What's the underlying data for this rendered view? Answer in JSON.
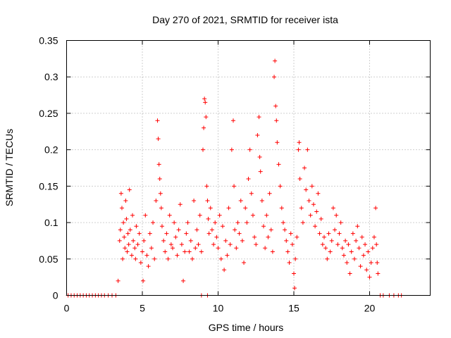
{
  "chart_data": {
    "type": "scatter",
    "title": "Day 270 of 2021, SRMTID for receiver ista",
    "xlabel": "GPS time / hours",
    "ylabel": "SRMTID / TECUs",
    "xlim": [
      0,
      24
    ],
    "ylim": [
      0,
      0.35
    ],
    "xticks": [
      0,
      5,
      10,
      15,
      20
    ],
    "yticks": [
      0,
      0.05,
      0.1,
      0.15,
      0.2,
      0.25,
      0.3,
      0.35
    ],
    "ytick_labels": [
      "0",
      "0.05",
      "0.1",
      "0.15",
      "0.2",
      "0.25",
      "0.3",
      "0.35"
    ],
    "xtick_labels": [
      "0",
      "5",
      "10",
      "15",
      "20"
    ],
    "grid": true,
    "marker": "+",
    "color": "#ff0000",
    "series": [
      {
        "points": [
          [
            0.1,
            0
          ],
          [
            0.3,
            0
          ],
          [
            0.5,
            0
          ],
          [
            0.7,
            0
          ],
          [
            0.9,
            0
          ],
          [
            1.1,
            0
          ],
          [
            1.3,
            0
          ],
          [
            1.5,
            0
          ],
          [
            1.7,
            0
          ],
          [
            1.9,
            0
          ],
          [
            2.1,
            0
          ],
          [
            2.3,
            0
          ],
          [
            2.5,
            0
          ],
          [
            2.75,
            0
          ],
          [
            3.0,
            0
          ],
          [
            3.25,
            0
          ],
          [
            8.9,
            0
          ],
          [
            9.3,
            0
          ],
          [
            20.7,
            0
          ],
          [
            20.9,
            0
          ],
          [
            21.3,
            0
          ],
          [
            21.6,
            0
          ],
          [
            21.9,
            0
          ],
          [
            22.1,
            0
          ],
          [
            3.4,
            0.02
          ],
          [
            3.5,
            0.075
          ],
          [
            3.55,
            0.09
          ],
          [
            3.6,
            0.14
          ],
          [
            3.65,
            0.12
          ],
          [
            3.7,
            0.05
          ],
          [
            3.75,
            0.1
          ],
          [
            3.8,
            0.08
          ],
          [
            3.85,
            0.065
          ],
          [
            3.9,
            0.13
          ],
          [
            3.95,
            0.105
          ],
          [
            4.0,
            0.06
          ],
          [
            4.05,
            0.085
          ],
          [
            4.1,
            0.07
          ],
          [
            4.15,
            0.145
          ],
          [
            4.2,
            0.09
          ],
          [
            4.3,
            0.055
          ],
          [
            4.35,
            0.11
          ],
          [
            4.4,
            0.075
          ],
          [
            4.5,
            0.065
          ],
          [
            4.55,
            0.05
          ],
          [
            4.6,
            0.095
          ],
          [
            4.7,
            0.07
          ],
          [
            4.8,
            0.085
          ],
          [
            4.9,
            0.045
          ],
          [
            5.0,
            0.06
          ],
          [
            5.05,
            0.02
          ],
          [
            5.1,
            0.075
          ],
          [
            5.2,
            0.11
          ],
          [
            5.3,
            0.055
          ],
          [
            5.4,
            0.04
          ],
          [
            5.5,
            0.085
          ],
          [
            5.6,
            0.065
          ],
          [
            5.7,
            0.1
          ],
          [
            5.8,
            0.05
          ],
          [
            5.9,
            0.13
          ],
          [
            6.0,
            0.24
          ],
          [
            6.05,
            0.215
          ],
          [
            6.1,
            0.18
          ],
          [
            6.15,
            0.16
          ],
          [
            6.2,
            0.14
          ],
          [
            6.25,
            0.12
          ],
          [
            6.3,
            0.095
          ],
          [
            6.4,
            0.075
          ],
          [
            6.5,
            0.06
          ],
          [
            6.6,
            0.085
          ],
          [
            6.7,
            0.05
          ],
          [
            6.8,
            0.11
          ],
          [
            6.9,
            0.07
          ],
          [
            7.0,
            0.065
          ],
          [
            7.1,
            0.1
          ],
          [
            7.2,
            0.08
          ],
          [
            7.3,
            0.055
          ],
          [
            7.4,
            0.09
          ],
          [
            7.5,
            0.125
          ],
          [
            7.6,
            0.07
          ],
          [
            7.7,
            0.02
          ],
          [
            7.8,
            0.06
          ],
          [
            7.9,
            0.085
          ],
          [
            8.0,
            0.1
          ],
          [
            8.1,
            0.06
          ],
          [
            8.2,
            0.075
          ],
          [
            8.3,
            0.05
          ],
          [
            8.4,
            0.13
          ],
          [
            8.5,
            0.065
          ],
          [
            8.6,
            0.09
          ],
          [
            8.7,
            0.07
          ],
          [
            8.8,
            0.11
          ],
          [
            8.9,
            0.06
          ],
          [
            9.0,
            0.2
          ],
          [
            9.05,
            0.23
          ],
          [
            9.1,
            0.27
          ],
          [
            9.15,
            0.265
          ],
          [
            9.2,
            0.245
          ],
          [
            9.25,
            0.15
          ],
          [
            9.3,
            0.13
          ],
          [
            9.35,
            0.105
          ],
          [
            9.4,
            0.085
          ],
          [
            9.5,
            0.12
          ],
          [
            9.6,
            0.09
          ],
          [
            9.7,
            0.07
          ],
          [
            9.8,
            0.1
          ],
          [
            9.9,
            0.08
          ],
          [
            10.0,
            0.065
          ],
          [
            10.1,
            0.11
          ],
          [
            10.2,
            0.05
          ],
          [
            10.3,
            0.095
          ],
          [
            10.4,
            0.035
          ],
          [
            10.5,
            0.075
          ],
          [
            10.6,
            0.055
          ],
          [
            10.7,
            0.12
          ],
          [
            10.8,
            0.07
          ],
          [
            10.9,
            0.2
          ],
          [
            11.0,
            0.24
          ],
          [
            11.05,
            0.15
          ],
          [
            11.1,
            0.09
          ],
          [
            11.2,
            0.065
          ],
          [
            11.3,
            0.1
          ],
          [
            11.4,
            0.085
          ],
          [
            11.5,
            0.13
          ],
          [
            11.6,
            0.075
          ],
          [
            11.7,
            0.045
          ],
          [
            11.8,
            0.12
          ],
          [
            11.9,
            0.1
          ],
          [
            12.0,
            0.16
          ],
          [
            12.1,
            0.2
          ],
          [
            12.2,
            0.14
          ],
          [
            12.3,
            0.11
          ],
          [
            12.4,
            0.08
          ],
          [
            12.5,
            0.07
          ],
          [
            12.6,
            0.22
          ],
          [
            12.7,
            0.245
          ],
          [
            12.75,
            0.19
          ],
          [
            12.8,
            0.17
          ],
          [
            12.9,
            0.13
          ],
          [
            13.0,
            0.095
          ],
          [
            13.1,
            0.065
          ],
          [
            13.2,
            0.11
          ],
          [
            13.3,
            0.08
          ],
          [
            13.4,
            0.14
          ],
          [
            13.5,
            0.09
          ],
          [
            13.6,
            0.06
          ],
          [
            13.7,
            0.3
          ],
          [
            13.75,
            0.322
          ],
          [
            13.8,
            0.26
          ],
          [
            13.85,
            0.24
          ],
          [
            13.9,
            0.21
          ],
          [
            14.0,
            0.18
          ],
          [
            14.1,
            0.15
          ],
          [
            14.2,
            0.12
          ],
          [
            14.3,
            0.1
          ],
          [
            14.4,
            0.09
          ],
          [
            14.5,
            0.075
          ],
          [
            14.6,
            0.06
          ],
          [
            14.7,
            0.045
          ],
          [
            14.8,
            0.085
          ],
          [
            14.9,
            0.07
          ],
          [
            15.0,
            0.03
          ],
          [
            15.05,
            0.01
          ],
          [
            15.1,
            0.05
          ],
          [
            15.2,
            0.08
          ],
          [
            15.3,
            0.2
          ],
          [
            15.35,
            0.21
          ],
          [
            15.4,
            0.16
          ],
          [
            15.5,
            0.12
          ],
          [
            15.6,
            0.1
          ],
          [
            15.7,
            0.175
          ],
          [
            15.8,
            0.145
          ],
          [
            15.9,
            0.2
          ],
          [
            16.0,
            0.13
          ],
          [
            16.1,
            0.11
          ],
          [
            16.2,
            0.15
          ],
          [
            16.3,
            0.125
          ],
          [
            16.4,
            0.095
          ],
          [
            16.5,
            0.115
          ],
          [
            16.6,
            0.14
          ],
          [
            16.7,
            0.085
          ],
          [
            16.8,
            0.105
          ],
          [
            16.9,
            0.07
          ],
          [
            17.0,
            0.08
          ],
          [
            17.1,
            0.065
          ],
          [
            17.2,
            0.05
          ],
          [
            17.3,
            0.085
          ],
          [
            17.4,
            0.06
          ],
          [
            17.5,
            0.075
          ],
          [
            17.6,
            0.12
          ],
          [
            17.7,
            0.09
          ],
          [
            17.8,
            0.11
          ],
          [
            17.9,
            0.07
          ],
          [
            18.0,
            0.085
          ],
          [
            18.1,
            0.1
          ],
          [
            18.2,
            0.065
          ],
          [
            18.3,
            0.055
          ],
          [
            18.4,
            0.075
          ],
          [
            18.5,
            0.045
          ],
          [
            18.6,
            0.07
          ],
          [
            18.7,
            0.03
          ],
          [
            18.8,
            0.06
          ],
          [
            18.9,
            0.085
          ],
          [
            19.0,
            0.05
          ],
          [
            19.1,
            0.075
          ],
          [
            19.2,
            0.095
          ],
          [
            19.3,
            0.065
          ],
          [
            19.4,
            0.04
          ],
          [
            19.5,
            0.08
          ],
          [
            19.6,
            0.055
          ],
          [
            19.7,
            0.07
          ],
          [
            19.8,
            0.035
          ],
          [
            19.9,
            0.06
          ],
          [
            20.0,
            0.025
          ],
          [
            20.1,
            0.045
          ],
          [
            20.2,
            0.065
          ],
          [
            20.3,
            0.08
          ],
          [
            20.4,
            0.12
          ],
          [
            20.45,
            0.07
          ],
          [
            20.5,
            0.045
          ],
          [
            20.55,
            0.03
          ]
        ]
      }
    ]
  }
}
